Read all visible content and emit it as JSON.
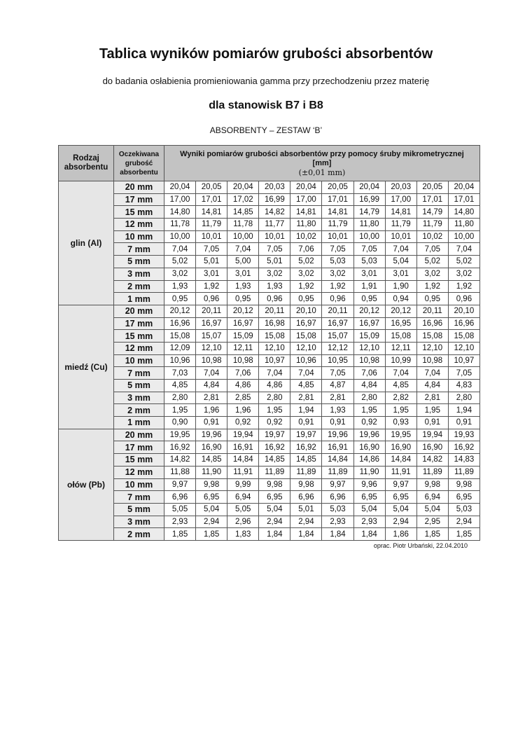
{
  "document": {
    "title": "Tablica wyników pomiarów grubości absorbentów",
    "subtitle": "do badania osłabienia promieniowania gamma przy przechodzeniu przez materię",
    "stations": "dla stanowisk B7 i B8",
    "set": "ABSORBENTY – ZESTAW ‘B’",
    "footer": "oprac. Piotr Urbański, 22.04.2010"
  },
  "table": {
    "headers": {
      "type": "Rodzaj absorbentu",
      "expected": "Oczekiwana grubość absorbentu",
      "results": "Wyniki pomiarów grubości absorbentów przy pomocy śruby mikrometrycznej",
      "unit": "[mm]",
      "uncertainty": "(±0,01 mm)"
    },
    "groups": [
      {
        "label": "glin (Al)",
        "rows": [
          {
            "thickness": "20 mm",
            "values": [
              "20,04",
              "20,05",
              "20,04",
              "20,03",
              "20,04",
              "20,05",
              "20,04",
              "20,03",
              "20,05",
              "20,04"
            ]
          },
          {
            "thickness": "17 mm",
            "values": [
              "17,00",
              "17,01",
              "17,02",
              "16,99",
              "17,00",
              "17,01",
              "16,99",
              "17,00",
              "17,01",
              "17,01"
            ]
          },
          {
            "thickness": "15 mm",
            "values": [
              "14,80",
              "14,81",
              "14,85",
              "14,82",
              "14,81",
              "14,81",
              "14,79",
              "14,81",
              "14,79",
              "14,80"
            ]
          },
          {
            "thickness": "12 mm",
            "values": [
              "11,78",
              "11,79",
              "11,78",
              "11,77",
              "11,80",
              "11,79",
              "11,80",
              "11,79",
              "11,79",
              "11,80"
            ]
          },
          {
            "thickness": "10 mm",
            "values": [
              "10,00",
              "10,01",
              "10,00",
              "10,01",
              "10,02",
              "10,01",
              "10,00",
              "10,01",
              "10,02",
              "10,00"
            ]
          },
          {
            "thickness": "7 mm",
            "values": [
              "7,04",
              "7,05",
              "7,04",
              "7,05",
              "7,06",
              "7,05",
              "7,05",
              "7,04",
              "7,05",
              "7,04"
            ]
          },
          {
            "thickness": "5 mm",
            "values": [
              "5,02",
              "5,01",
              "5,00",
              "5,01",
              "5,02",
              "5,03",
              "5,03",
              "5,04",
              "5,02",
              "5,02"
            ]
          },
          {
            "thickness": "3 mm",
            "values": [
              "3,02",
              "3,01",
              "3,01",
              "3,02",
              "3,02",
              "3,02",
              "3,01",
              "3,01",
              "3,02",
              "3,02"
            ]
          },
          {
            "thickness": "2 mm",
            "values": [
              "1,93",
              "1,92",
              "1,93",
              "1,93",
              "1,92",
              "1,92",
              "1,91",
              "1,90",
              "1,92",
              "1,92"
            ]
          },
          {
            "thickness": "1 mm",
            "values": [
              "0,95",
              "0,96",
              "0,95",
              "0,96",
              "0,95",
              "0,96",
              "0,95",
              "0,94",
              "0,95",
              "0,96"
            ]
          }
        ]
      },
      {
        "label": "miedź (Cu)",
        "rows": [
          {
            "thickness": "20 mm",
            "values": [
              "20,12",
              "20,11",
              "20,12",
              "20,11",
              "20,10",
              "20,11",
              "20,12",
              "20,12",
              "20,11",
              "20,10"
            ]
          },
          {
            "thickness": "17 mm",
            "values": [
              "16,96",
              "16,97",
              "16,97",
              "16,98",
              "16,97",
              "16,97",
              "16,97",
              "16,95",
              "16,96",
              "16,96"
            ]
          },
          {
            "thickness": "15 mm",
            "values": [
              "15,08",
              "15,07",
              "15,09",
              "15,08",
              "15,08",
              "15,07",
              "15,09",
              "15,08",
              "15,08",
              "15,08"
            ]
          },
          {
            "thickness": "12 mm",
            "values": [
              "12,09",
              "12,10",
              "12,11",
              "12,10",
              "12,10",
              "12,12",
              "12,10",
              "12,11",
              "12,10",
              "12,10"
            ]
          },
          {
            "thickness": "10 mm",
            "values": [
              "10,96",
              "10,98",
              "10,98",
              "10,97",
              "10,96",
              "10,95",
              "10,98",
              "10,99",
              "10,98",
              "10,97"
            ]
          },
          {
            "thickness": "7 mm",
            "values": [
              "7,03",
              "7,04",
              "7,06",
              "7,04",
              "7,04",
              "7,05",
              "7,06",
              "7,04",
              "7,04",
              "7,05"
            ]
          },
          {
            "thickness": "5 mm",
            "values": [
              "4,85",
              "4,84",
              "4,86",
              "4,86",
              "4,85",
              "4,87",
              "4,84",
              "4,85",
              "4,84",
              "4,83"
            ]
          },
          {
            "thickness": "3 mm",
            "values": [
              "2,80",
              "2,81",
              "2,85",
              "2,80",
              "2,81",
              "2,81",
              "2,80",
              "2,82",
              "2,81",
              "2,80"
            ]
          },
          {
            "thickness": "2 mm",
            "values": [
              "1,95",
              "1,96",
              "1,96",
              "1,95",
              "1,94",
              "1,93",
              "1,95",
              "1,95",
              "1,95",
              "1,94"
            ]
          },
          {
            "thickness": "1 mm",
            "values": [
              "0,90",
              "0,91",
              "0,92",
              "0,92",
              "0,91",
              "0,91",
              "0,92",
              "0,93",
              "0,91",
              "0,91"
            ]
          }
        ]
      },
      {
        "label": "ołów (Pb)",
        "rows": [
          {
            "thickness": "20 mm",
            "values": [
              "19,95",
              "19,96",
              "19,94",
              "19,97",
              "19,97",
              "19,96",
              "19,96",
              "19,95",
              "19,94",
              "19,93"
            ]
          },
          {
            "thickness": "17 mm",
            "values": [
              "16,92",
              "16,90",
              "16,91",
              "16,92",
              "16,92",
              "16,91",
              "16,90",
              "16,90",
              "16,90",
              "16,92"
            ]
          },
          {
            "thickness": "15 mm",
            "values": [
              "14,82",
              "14,85",
              "14,84",
              "14,85",
              "14,85",
              "14,84",
              "14,86",
              "14,84",
              "14,82",
              "14,83"
            ]
          },
          {
            "thickness": "12 mm",
            "values": [
              "11,88",
              "11,90",
              "11,91",
              "11,89",
              "11,89",
              "11,89",
              "11,90",
              "11,91",
              "11,89",
              "11,89"
            ]
          },
          {
            "thickness": "10 mm",
            "values": [
              "9,97",
              "9,98",
              "9,99",
              "9,98",
              "9,98",
              "9,97",
              "9,96",
              "9,97",
              "9,98",
              "9,98"
            ]
          },
          {
            "thickness": "7 mm",
            "values": [
              "6,96",
              "6,95",
              "6,94",
              "6,95",
              "6,96",
              "6,96",
              "6,95",
              "6,95",
              "6,94",
              "6,95"
            ]
          },
          {
            "thickness": "5 mm",
            "values": [
              "5,05",
              "5,04",
              "5,05",
              "5,04",
              "5,01",
              "5,03",
              "5,04",
              "5,04",
              "5,04",
              "5,03"
            ]
          },
          {
            "thickness": "3 mm",
            "values": [
              "2,93",
              "2,94",
              "2,96",
              "2,94",
              "2,94",
              "2,93",
              "2,93",
              "2,94",
              "2,95",
              "2,94"
            ]
          },
          {
            "thickness": "2 mm",
            "values": [
              "1,85",
              "1,85",
              "1,83",
              "1,84",
              "1,84",
              "1,84",
              "1,84",
              "1,86",
              "1,85",
              "1,85"
            ]
          }
        ]
      }
    ]
  }
}
